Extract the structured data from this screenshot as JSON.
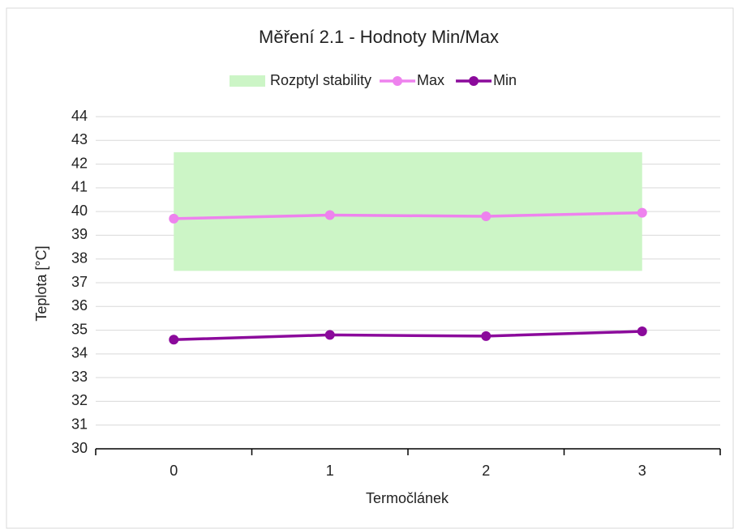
{
  "chart_data": {
    "type": "line",
    "title": "Měření 2.1 - Hodnoty Min/Max",
    "x_label": "Termočlánek",
    "y_label": "Teplota [°C]",
    "categories": [
      "0",
      "1",
      "2",
      "3"
    ],
    "band": {
      "name": "Rozptyl stability",
      "color": "#ccf5c6",
      "lower": [
        37.5,
        37.5,
        37.5,
        37.5
      ],
      "upper": [
        42.5,
        42.5,
        42.5,
        42.5
      ]
    },
    "series": [
      {
        "name": "Max",
        "color": "#ee82ee",
        "values": [
          39.7,
          39.85,
          39.8,
          39.95
        ]
      },
      {
        "name": "Min",
        "color": "#8b0a9b",
        "values": [
          34.6,
          34.8,
          34.75,
          34.95
        ]
      }
    ],
    "ylim": [
      30,
      44
    ],
    "yticks": [
      30,
      31,
      32,
      33,
      34,
      35,
      36,
      37,
      38,
      39,
      40,
      41,
      42,
      43,
      44
    ],
    "grid": true,
    "legend": "top"
  }
}
